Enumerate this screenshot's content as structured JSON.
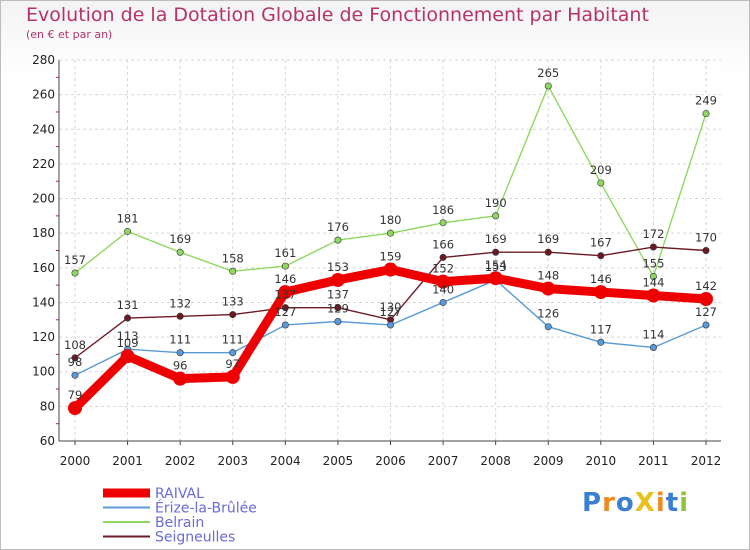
{
  "chart_data": {
    "type": "line",
    "title": "Evolution de la Dotation Globale de Fonctionnement par Habitant",
    "subtitle": "(en € et par an)",
    "xlabel": "",
    "ylabel": "",
    "ylim": [
      60,
      280
    ],
    "yticks": [
      60,
      80,
      100,
      120,
      140,
      160,
      180,
      200,
      220,
      240,
      260,
      280
    ],
    "categories": [
      "2000",
      "2001",
      "2002",
      "2003",
      "2004",
      "2005",
      "2006",
      "2007",
      "2008",
      "2009",
      "2010",
      "2011",
      "2012"
    ],
    "grid": true,
    "legend_position": "bottom-left",
    "series": [
      {
        "name": "RAIVAL",
        "color": "#ee0000",
        "values": [
          79,
          109,
          96,
          97,
          146,
          153,
          159,
          152,
          154,
          148,
          146,
          144,
          142
        ]
      },
      {
        "name": "Érize-la-Brûlée",
        "color": "#5a9ad8",
        "values": [
          98,
          113,
          111,
          111,
          127,
          129,
          127,
          140,
          153,
          126,
          117,
          114,
          127
        ]
      },
      {
        "name": "Belrain",
        "color": "#8fd860",
        "values": [
          157,
          181,
          169,
          158,
          161,
          176,
          180,
          186,
          190,
          265,
          209,
          155,
          249
        ]
      },
      {
        "name": "Seigneulles",
        "color": "#6b1a24",
        "values": [
          108,
          131,
          132,
          133,
          137,
          137,
          130,
          166,
          169,
          169,
          167,
          172,
          170
        ]
      }
    ]
  },
  "logo": {
    "text": "ProXiti"
  }
}
